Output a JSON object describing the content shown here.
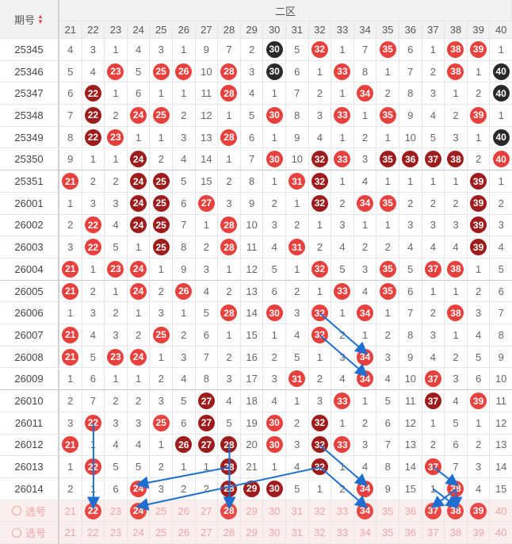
{
  "header": {
    "issue_label": "期号",
    "zone_label": "二区",
    "sort_icon": "sort-updown-icon"
  },
  "columns": [
    "21",
    "22",
    "23",
    "24",
    "25",
    "26",
    "27",
    "28",
    "29",
    "30",
    "31",
    "32",
    "33",
    "34",
    "35",
    "36",
    "37",
    "38",
    "39",
    "40"
  ],
  "colors": {
    "red": "#e8403c",
    "dark": "#9e1c1c",
    "black": "#2a2a2a",
    "arrow": "#1e6fd0"
  },
  "rows": [
    {
      "issue": "25345",
      "cells": [
        "4",
        "3",
        "1",
        "4",
        "3",
        "1",
        "9",
        "7",
        "2",
        "k30",
        "5",
        "r32",
        "1",
        "7",
        "r35",
        "6",
        "1",
        "r38",
        "r39",
        "1"
      ]
    },
    {
      "issue": "25346",
      "cells": [
        "5",
        "4",
        "r23",
        "5",
        "r25",
        "r26",
        "10",
        "r28",
        "3",
        "k30",
        "6",
        "1",
        "r33",
        "8",
        "1",
        "7",
        "2",
        "r38",
        "1",
        "k40"
      ]
    },
    {
      "issue": "25347",
      "cells": [
        "6",
        "d22",
        "1",
        "6",
        "1",
        "1",
        "11",
        "r28",
        "4",
        "1",
        "7",
        "2",
        "1",
        "r34",
        "2",
        "8",
        "3",
        "1",
        "2",
        "k40"
      ]
    },
    {
      "issue": "25348",
      "cells": [
        "7",
        "d22",
        "2",
        "r24",
        "r25",
        "2",
        "12",
        "1",
        "5",
        "r30",
        "8",
        "3",
        "r33",
        "1",
        "r35",
        "9",
        "4",
        "2",
        "r39",
        "1"
      ]
    },
    {
      "issue": "25349",
      "cells": [
        "8",
        "d22",
        "r23",
        "1",
        "1",
        "3",
        "13",
        "r28",
        "6",
        "1",
        "9",
        "4",
        "1",
        "2",
        "1",
        "10",
        "5",
        "3",
        "1",
        "k40"
      ]
    },
    {
      "issue": "25350",
      "cells": [
        "9",
        "1",
        "1",
        "d24",
        "2",
        "4",
        "14",
        "1",
        "7",
        "r30",
        "10",
        "d32",
        "r33",
        "3",
        "d35",
        "d36",
        "d37",
        "d38",
        "2",
        "r40"
      ]
    },
    {
      "issue": "25351",
      "cells": [
        "r21",
        "2",
        "2",
        "d24",
        "d25",
        "5",
        "15",
        "2",
        "8",
        "1",
        "r31",
        "d32",
        "1",
        "4",
        "1",
        "1",
        "1",
        "1",
        "d39",
        "1"
      ]
    },
    {
      "issue": "26001",
      "cells": [
        "1",
        "3",
        "3",
        "d24",
        "d25",
        "6",
        "r27",
        "3",
        "9",
        "2",
        "1",
        "d32",
        "2",
        "r34",
        "r35",
        "2",
        "2",
        "2",
        "d39",
        "2"
      ]
    },
    {
      "issue": "26002",
      "cells": [
        "2",
        "r22",
        "4",
        "d24",
        "d25",
        "7",
        "1",
        "r28",
        "10",
        "3",
        "2",
        "1",
        "3",
        "1",
        "1",
        "3",
        "3",
        "3",
        "d39",
        "3"
      ]
    },
    {
      "issue": "26003",
      "cells": [
        "3",
        "r22",
        "5",
        "1",
        "d25",
        "8",
        "2",
        "r28",
        "11",
        "4",
        "r31",
        "2",
        "4",
        "2",
        "2",
        "4",
        "4",
        "4",
        "d39",
        "4"
      ]
    },
    {
      "issue": "26004",
      "cells": [
        "r21",
        "1",
        "r23",
        "r24",
        "1",
        "9",
        "3",
        "1",
        "12",
        "5",
        "1",
        "r32",
        "5",
        "3",
        "r35",
        "5",
        "r37",
        "r38",
        "1",
        "5"
      ]
    },
    {
      "issue": "26005",
      "cells": [
        "r21",
        "2",
        "1",
        "r24",
        "2",
        "r26",
        "4",
        "2",
        "13",
        "6",
        "2",
        "1",
        "r33",
        "4",
        "r35",
        "6",
        "1",
        "1",
        "2",
        "6"
      ]
    },
    {
      "issue": "26006",
      "cells": [
        "1",
        "3",
        "2",
        "1",
        "3",
        "1",
        "5",
        "r28",
        "14",
        "r30",
        "3",
        "r32",
        "1",
        "r34",
        "1",
        "7",
        "2",
        "r38",
        "3",
        "7"
      ]
    },
    {
      "issue": "26007",
      "cells": [
        "r21",
        "4",
        "3",
        "2",
        "r25",
        "2",
        "6",
        "1",
        "15",
        "1",
        "4",
        "r32",
        "2",
        "1",
        "2",
        "8",
        "3",
        "1",
        "4",
        "8"
      ]
    },
    {
      "issue": "26008",
      "cells": [
        "r21",
        "5",
        "r23",
        "r24",
        "1",
        "3",
        "7",
        "2",
        "16",
        "2",
        "5",
        "1",
        "3",
        "r34",
        "3",
        "9",
        "4",
        "2",
        "5",
        "9"
      ]
    },
    {
      "issue": "26009",
      "cells": [
        "1",
        "6",
        "1",
        "1",
        "2",
        "4",
        "8",
        "3",
        "17",
        "3",
        "r31",
        "2",
        "4",
        "r34",
        "4",
        "10",
        "r37",
        "3",
        "6",
        "10"
      ]
    },
    {
      "issue": "26010",
      "cells": [
        "2",
        "7",
        "2",
        "2",
        "3",
        "5",
        "d27",
        "4",
        "18",
        "4",
        "1",
        "3",
        "r33",
        "1",
        "5",
        "11",
        "d37",
        "4",
        "r39",
        "11"
      ]
    },
    {
      "issue": "26011",
      "cells": [
        "3",
        "r22",
        "3",
        "3",
        "r25",
        "6",
        "d27",
        "5",
        "19",
        "r30",
        "2",
        "d32",
        "1",
        "2",
        "6",
        "12",
        "1",
        "5",
        "1",
        "12"
      ]
    },
    {
      "issue": "26012",
      "cells": [
        "r21",
        "1",
        "4",
        "4",
        "1",
        "d26",
        "d27",
        "d28",
        "20",
        "r30",
        "3",
        "d32",
        "r33",
        "3",
        "7",
        "13",
        "2",
        "6",
        "2",
        "13"
      ]
    },
    {
      "issue": "26013",
      "cells": [
        "1",
        "r22",
        "5",
        "5",
        "2",
        "1",
        "1",
        "d28",
        "21",
        "1",
        "4",
        "d32",
        "1",
        "4",
        "8",
        "14",
        "r37",
        "7",
        "3",
        "14"
      ]
    },
    {
      "issue": "26014",
      "cells": [
        "2",
        "1",
        "6",
        "r24",
        "3",
        "2",
        "2",
        "d28",
        "d29",
        "d30",
        "5",
        "1",
        "2",
        "r34",
        "9",
        "15",
        "1",
        "r38",
        "4",
        "15"
      ]
    }
  ],
  "select_row": {
    "label": "选号",
    "cells": [
      "21",
      "r22",
      "23",
      "r24",
      "25",
      "26",
      "27",
      "r28",
      "29",
      "30",
      "31",
      "32",
      "33",
      "r34",
      "35",
      "36",
      "r37",
      "r38",
      "r39",
      "40"
    ]
  },
  "select_row2": {
    "label": "选号",
    "cells": [
      "21",
      "22",
      "23",
      "24",
      "25",
      "26",
      "27",
      "28",
      "29",
      "30",
      "31",
      "32",
      "33",
      "34",
      "35",
      "36",
      "37",
      "38",
      "39",
      "40"
    ]
  }
}
